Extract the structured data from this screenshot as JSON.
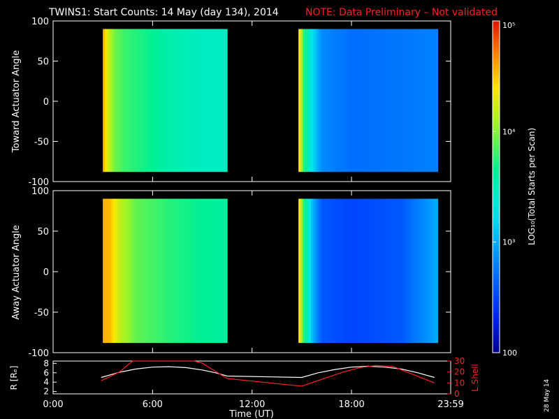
{
  "title": "TWINS1: Start Counts: 14 May (day 134), 2014",
  "note": "NOTE: Data Preliminary – Not validated",
  "colors": {
    "background": "#000000",
    "foreground": "#ffffff",
    "note": "#ff2020",
    "lshell": "#ff2020",
    "radius": "#ffffff"
  },
  "side_date": "28 May 14",
  "chart_data": [
    {
      "type": "heatmap",
      "panel": "top",
      "ylabel": "Toward Actuator Angle",
      "ylim": [
        -100,
        100
      ],
      "yticks": [
        100,
        50,
        0,
        -50,
        -100
      ],
      "data_extent_angle": [
        -88,
        90
      ],
      "segments": [
        {
          "t_start": 3.0,
          "t_end": 10.5,
          "levels": [
            {
              "t": 3.0,
              "v": 4.6
            },
            {
              "t": 3.3,
              "v": 4.25
            },
            {
              "t": 3.7,
              "v": 3.95
            },
            {
              "t": 4.3,
              "v": 3.8
            },
            {
              "t": 5.5,
              "v": 3.7
            },
            {
              "t": 7.0,
              "v": 3.55
            },
            {
              "t": 9.0,
              "v": 3.45
            },
            {
              "t": 10.5,
              "v": 3.45
            }
          ]
        },
        {
          "t_start": 14.8,
          "t_end": 23.2,
          "levels": [
            {
              "t": 14.8,
              "v": 4.55
            },
            {
              "t": 15.1,
              "v": 3.8
            },
            {
              "t": 15.5,
              "v": 3.35
            },
            {
              "t": 16.2,
              "v": 2.85
            },
            {
              "t": 18.0,
              "v": 2.7
            },
            {
              "t": 21.0,
              "v": 2.75
            },
            {
              "t": 23.2,
              "v": 2.8
            }
          ]
        }
      ]
    },
    {
      "type": "heatmap",
      "panel": "bottom",
      "ylabel": "Away Actuator Angle",
      "ylim": [
        -100,
        100
      ],
      "yticks": [
        100,
        50,
        0,
        -50,
        -100
      ],
      "data_extent_angle": [
        -88,
        90
      ],
      "segments": [
        {
          "t_start": 3.0,
          "t_end": 10.5,
          "levels": [
            {
              "t": 3.0,
              "v": 4.55
            },
            {
              "t": 3.4,
              "v": 4.55
            },
            {
              "t": 4.0,
              "v": 4.2
            },
            {
              "t": 5.0,
              "v": 3.9
            },
            {
              "t": 7.0,
              "v": 3.75
            },
            {
              "t": 9.0,
              "v": 3.65
            },
            {
              "t": 10.5,
              "v": 3.6
            }
          ]
        },
        {
          "t_start": 14.8,
          "t_end": 23.2,
          "levels": [
            {
              "t": 14.8,
              "v": 4.55
            },
            {
              "t": 15.1,
              "v": 3.8
            },
            {
              "t": 15.6,
              "v": 3.1
            },
            {
              "t": 16.2,
              "v": 2.6
            },
            {
              "t": 18.0,
              "v": 2.5
            },
            {
              "t": 21.0,
              "v": 2.6
            },
            {
              "t": 23.2,
              "v": 3.0
            }
          ]
        }
      ]
    },
    {
      "type": "line",
      "panel": "orbit",
      "xlabel": "Time (UT)",
      "xlim": [
        0,
        23.983
      ],
      "xtick_labels": [
        "0:00",
        "6:00",
        "12:00",
        "18:00",
        "23:59"
      ],
      "xticks": [
        0,
        6,
        12,
        18,
        23.983
      ],
      "ylabel_left": "R [Rₑ]",
      "ylim_left": [
        1.5,
        8.5
      ],
      "yticks_left": [
        2,
        4,
        6,
        8
      ],
      "ylabel_right": "L Shell",
      "ylim_right": [
        0,
        30
      ],
      "yticks_right": [
        0,
        10,
        20,
        30
      ],
      "series": [
        {
          "name": "R",
          "axis": "left",
          "color": "#ffffff",
          "x": [
            2.9,
            4.0,
            5.0,
            6.0,
            7.0,
            8.0,
            9.0,
            9.8,
            10.5,
            15.0,
            16.0,
            17.0,
            18.0,
            19.0,
            20.0,
            21.0,
            22.0,
            23.0
          ],
          "y": [
            5.0,
            6.1,
            6.8,
            7.2,
            7.3,
            7.1,
            6.6,
            6.0,
            5.3,
            5.0,
            6.0,
            6.7,
            7.2,
            7.4,
            7.2,
            6.8,
            6.0,
            5.0
          ]
        },
        {
          "name": "L Shell",
          "axis": "right",
          "color": "#ff2020",
          "x": [
            2.9,
            4.0,
            4.8,
            8.5,
            9.0,
            10.5,
            15.0,
            17.5,
            18.5,
            19.5,
            20.5,
            23.0
          ],
          "y": [
            12,
            20,
            30,
            30,
            28,
            14,
            7,
            20,
            24,
            26,
            25,
            10
          ]
        }
      ]
    },
    {
      "type": "colorbar",
      "label": "LOG₁₀(Total Starts per Scan)",
      "range_log10": [
        2,
        5
      ],
      "tick_labels": [
        "10⁵",
        "10⁴",
        "10³",
        "100"
      ],
      "tick_values": [
        5,
        4,
        3,
        2
      ]
    }
  ]
}
